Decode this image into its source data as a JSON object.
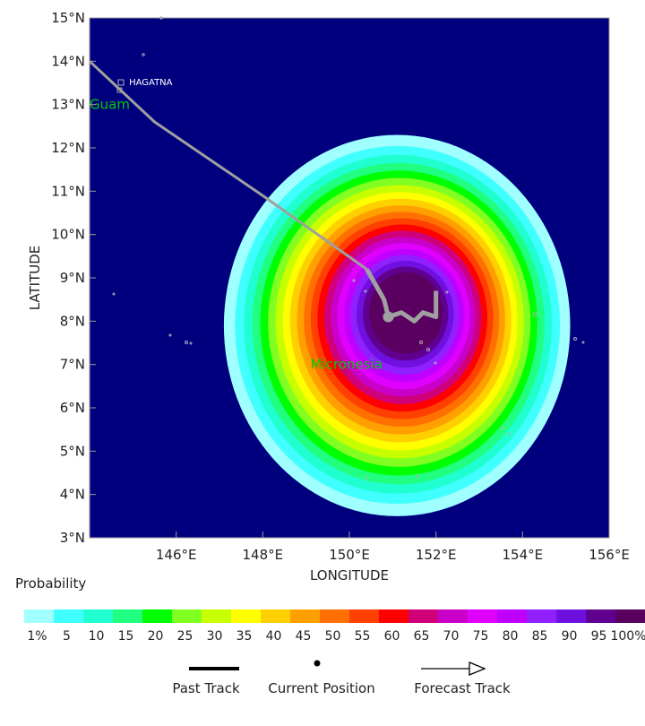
{
  "map": {
    "x_axis_title": "LONGITUDE",
    "y_axis_title": "LATITUDE",
    "x_range": [
      144.0,
      156.0
    ],
    "y_range": [
      3.0,
      15.0
    ],
    "x_ticks": [
      {
        "value": 146,
        "label": "146°E"
      },
      {
        "value": 148,
        "label": "148°E"
      },
      {
        "value": 150,
        "label": "150°E"
      },
      {
        "value": 152,
        "label": "152°E"
      },
      {
        "value": 154,
        "label": "154°E"
      },
      {
        "value": 156,
        "label": "156°E"
      }
    ],
    "y_ticks": [
      {
        "value": 3,
        "label": "3°N"
      },
      {
        "value": 4,
        "label": "4°N"
      },
      {
        "value": 5,
        "label": "5°N"
      },
      {
        "value": 6,
        "label": "6°N"
      },
      {
        "value": 7,
        "label": "7°N"
      },
      {
        "value": 8,
        "label": "8°N"
      },
      {
        "value": 9,
        "label": "9°N"
      },
      {
        "value": 10,
        "label": "10°N"
      },
      {
        "value": 11,
        "label": "11°N"
      },
      {
        "value": 12,
        "label": "12°N"
      },
      {
        "value": 13,
        "label": "13°N"
      },
      {
        "value": 14,
        "label": "14°N"
      },
      {
        "value": 15,
        "label": "15°N"
      }
    ],
    "ocean_color": "#00007f",
    "place_labels": [
      {
        "name": "HAGATNA",
        "lon": 144.85,
        "lat": 13.45,
        "color": "#ffffff",
        "size": "small"
      },
      {
        "name": "Guam",
        "lon": 144.0,
        "lat": 12.9,
        "color": "#00cc00",
        "size": "large"
      },
      {
        "name": "Micronesia",
        "lon": 149.1,
        "lat": 6.9,
        "color": "#00cc00",
        "size": "large"
      }
    ],
    "past_track": [
      [
        144.0,
        14.0
      ],
      [
        145.5,
        12.6
      ],
      [
        148.0,
        10.9
      ],
      [
        150.4,
        9.2
      ]
    ],
    "forecast_track": [
      [
        150.4,
        9.2
      ],
      [
        150.8,
        8.5
      ],
      [
        150.9,
        8.1
      ],
      [
        151.2,
        8.2
      ],
      [
        151.5,
        8.0
      ],
      [
        151.7,
        8.2
      ],
      [
        152.0,
        8.1
      ],
      [
        152.0,
        8.7
      ]
    ],
    "current_position": [
      150.9,
      8.1
    ],
    "probability_center": [
      151.1,
      7.9
    ],
    "probability_radius_lon": 4.0,
    "probability_radius_lat": 4.4
  },
  "legend": {
    "title": "Probability",
    "colors": [
      "#a0ffff",
      "#40ffff",
      "#20ffd0",
      "#20ff80",
      "#00ff00",
      "#80ff20",
      "#c8ff00",
      "#ffff00",
      "#ffd000",
      "#ffa000",
      "#ff7000",
      "#ff4000",
      "#ff0000",
      "#d0007a",
      "#c800c8",
      "#e000ff",
      "#c000ff",
      "#9020ff",
      "#7010e0",
      "#600090",
      "#5a0060"
    ],
    "labels": [
      "1%",
      "5",
      "10",
      "15",
      "20",
      "25",
      "30",
      "35",
      "40",
      "45",
      "50",
      "55",
      "60",
      "65",
      "70",
      "75",
      "80",
      "85",
      "90",
      "95",
      "100%"
    ]
  },
  "key": {
    "past_track_label": "Past Track",
    "current_position_label": "Current Position",
    "forecast_track_label": "Forecast Track"
  }
}
